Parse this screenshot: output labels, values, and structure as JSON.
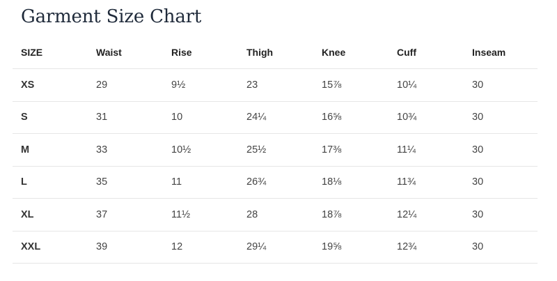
{
  "page": {
    "title": "Garment Size Chart"
  },
  "table": {
    "headers": [
      "SIZE",
      "Waist",
      "Rise",
      "Thigh",
      "Knee",
      "Cuff",
      "Inseam"
    ],
    "rows": [
      [
        "XS",
        "29",
        "9½",
        "23",
        "15⅞",
        "10¼",
        "30"
      ],
      [
        "S",
        "31",
        "10",
        "24¼",
        "16⅝",
        "10¾",
        "30"
      ],
      [
        "M",
        "33",
        "10½",
        "25½",
        "17⅜",
        "11¼",
        "30"
      ],
      [
        "L",
        "35",
        "11",
        "26¾",
        "18⅛",
        "11¾",
        "30"
      ],
      [
        "XL",
        "37",
        "11½",
        "28",
        "18⅞",
        "12¼",
        "30"
      ],
      [
        "XXL",
        "39",
        "12",
        "29¼",
        "19⅝",
        "12¾",
        "30"
      ]
    ]
  }
}
